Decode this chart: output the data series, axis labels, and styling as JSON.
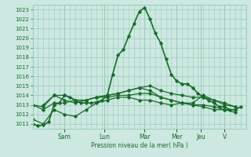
{
  "background_color": "#cce8e0",
  "grid_color": "#99ccbb",
  "line_color": "#1a6b2a",
  "ylabel": "Pression niveau de la mer( hPa )",
  "ylim": [
    1010.5,
    1023.5
  ],
  "yticks": [
    1011,
    1012,
    1013,
    1014,
    1015,
    1016,
    1017,
    1018,
    1019,
    1020,
    1021,
    1022,
    1023
  ],
  "day_labels": [
    "Sam",
    "Lun",
    "Mar",
    "Mer",
    "Jeu",
    "V"
  ],
  "day_tick_positions": [
    24,
    54,
    84,
    108,
    126,
    144
  ],
  "xlim": [
    0,
    160
  ],
  "lines": [
    {
      "x": [
        0,
        4,
        8,
        12,
        16,
        20,
        24,
        28,
        32,
        36,
        40,
        44,
        48,
        52,
        56,
        60,
        64,
        68,
        72,
        76,
        80,
        84,
        88,
        92,
        96,
        100,
        104,
        108,
        112,
        116,
        120,
        124,
        128,
        132,
        136,
        140,
        144,
        148,
        152,
        156
      ],
      "y": [
        1011.0,
        1010.8,
        1010.9,
        1011.2,
        1013.0,
        1013.2,
        1014.0,
        1013.8,
        1013.5,
        1013.2,
        1013.2,
        1013.2,
        1013.3,
        1013.5,
        1014.0,
        1016.2,
        1018.2,
        1018.8,
        1020.2,
        1021.5,
        1022.8,
        1023.2,
        1022.0,
        1020.5,
        1019.5,
        1017.8,
        1016.2,
        1015.5,
        1015.2,
        1015.2,
        1014.8,
        1014.2,
        1013.8,
        1013.5,
        1013.2,
        1012.8,
        1012.8,
        1012.5,
        1012.5,
        1012.8
      ],
      "marker": "D",
      "markersize": 1.8,
      "linewidth": 1.2
    },
    {
      "x": [
        0,
        8,
        16,
        24,
        32,
        40,
        48,
        56,
        64,
        72,
        80,
        88,
        96,
        104,
        112,
        120,
        128,
        136,
        144,
        152
      ],
      "y": [
        1013.0,
        1012.8,
        1014.0,
        1014.0,
        1013.5,
        1013.5,
        1013.8,
        1014.0,
        1014.2,
        1014.5,
        1014.8,
        1015.0,
        1014.5,
        1014.2,
        1014.0,
        1013.8,
        1013.8,
        1013.5,
        1013.2,
        1012.8
      ],
      "marker": "D",
      "markersize": 1.8,
      "linewidth": 0.9
    },
    {
      "x": [
        0,
        8,
        16,
        24,
        32,
        40,
        48,
        56,
        64,
        72,
        80,
        88,
        96,
        104,
        112,
        120,
        128,
        136,
        144,
        152
      ],
      "y": [
        1013.0,
        1012.5,
        1013.2,
        1013.2,
        1013.5,
        1013.5,
        1013.8,
        1013.8,
        1014.0,
        1014.0,
        1014.2,
        1014.2,
        1013.8,
        1013.5,
        1013.2,
        1013.0,
        1013.0,
        1012.8,
        1012.5,
        1012.5
      ],
      "marker": "D",
      "markersize": 1.8,
      "linewidth": 0.9
    },
    {
      "x": [
        0,
        8,
        16,
        24,
        32,
        40,
        48,
        56,
        64,
        72,
        80,
        88,
        96,
        104,
        112,
        120,
        128,
        136,
        144,
        152
      ],
      "y": [
        1011.5,
        1011.0,
        1012.5,
        1012.0,
        1011.8,
        1012.5,
        1013.2,
        1013.5,
        1013.8,
        1013.8,
        1013.5,
        1013.5,
        1013.2,
        1013.0,
        1013.2,
        1013.0,
        1012.8,
        1012.5,
        1012.5,
        1012.2
      ],
      "marker": "D",
      "markersize": 1.8,
      "linewidth": 0.9
    },
    {
      "x": [
        8,
        16,
        24,
        32,
        40,
        48,
        56,
        64,
        72,
        80,
        88,
        96,
        104,
        112,
        120,
        128,
        136,
        144,
        152
      ],
      "y": [
        1013.0,
        1014.0,
        1013.5,
        1013.2,
        1013.5,
        1013.8,
        1014.0,
        1014.2,
        1014.5,
        1014.8,
        1014.5,
        1013.8,
        1013.5,
        1013.2,
        1013.2,
        1014.0,
        1013.5,
        1013.0,
        1012.8
      ],
      "marker": "D",
      "markersize": 1.8,
      "linewidth": 0.9
    }
  ],
  "vline_positions": [
    24,
    54,
    84,
    108,
    126,
    144
  ]
}
